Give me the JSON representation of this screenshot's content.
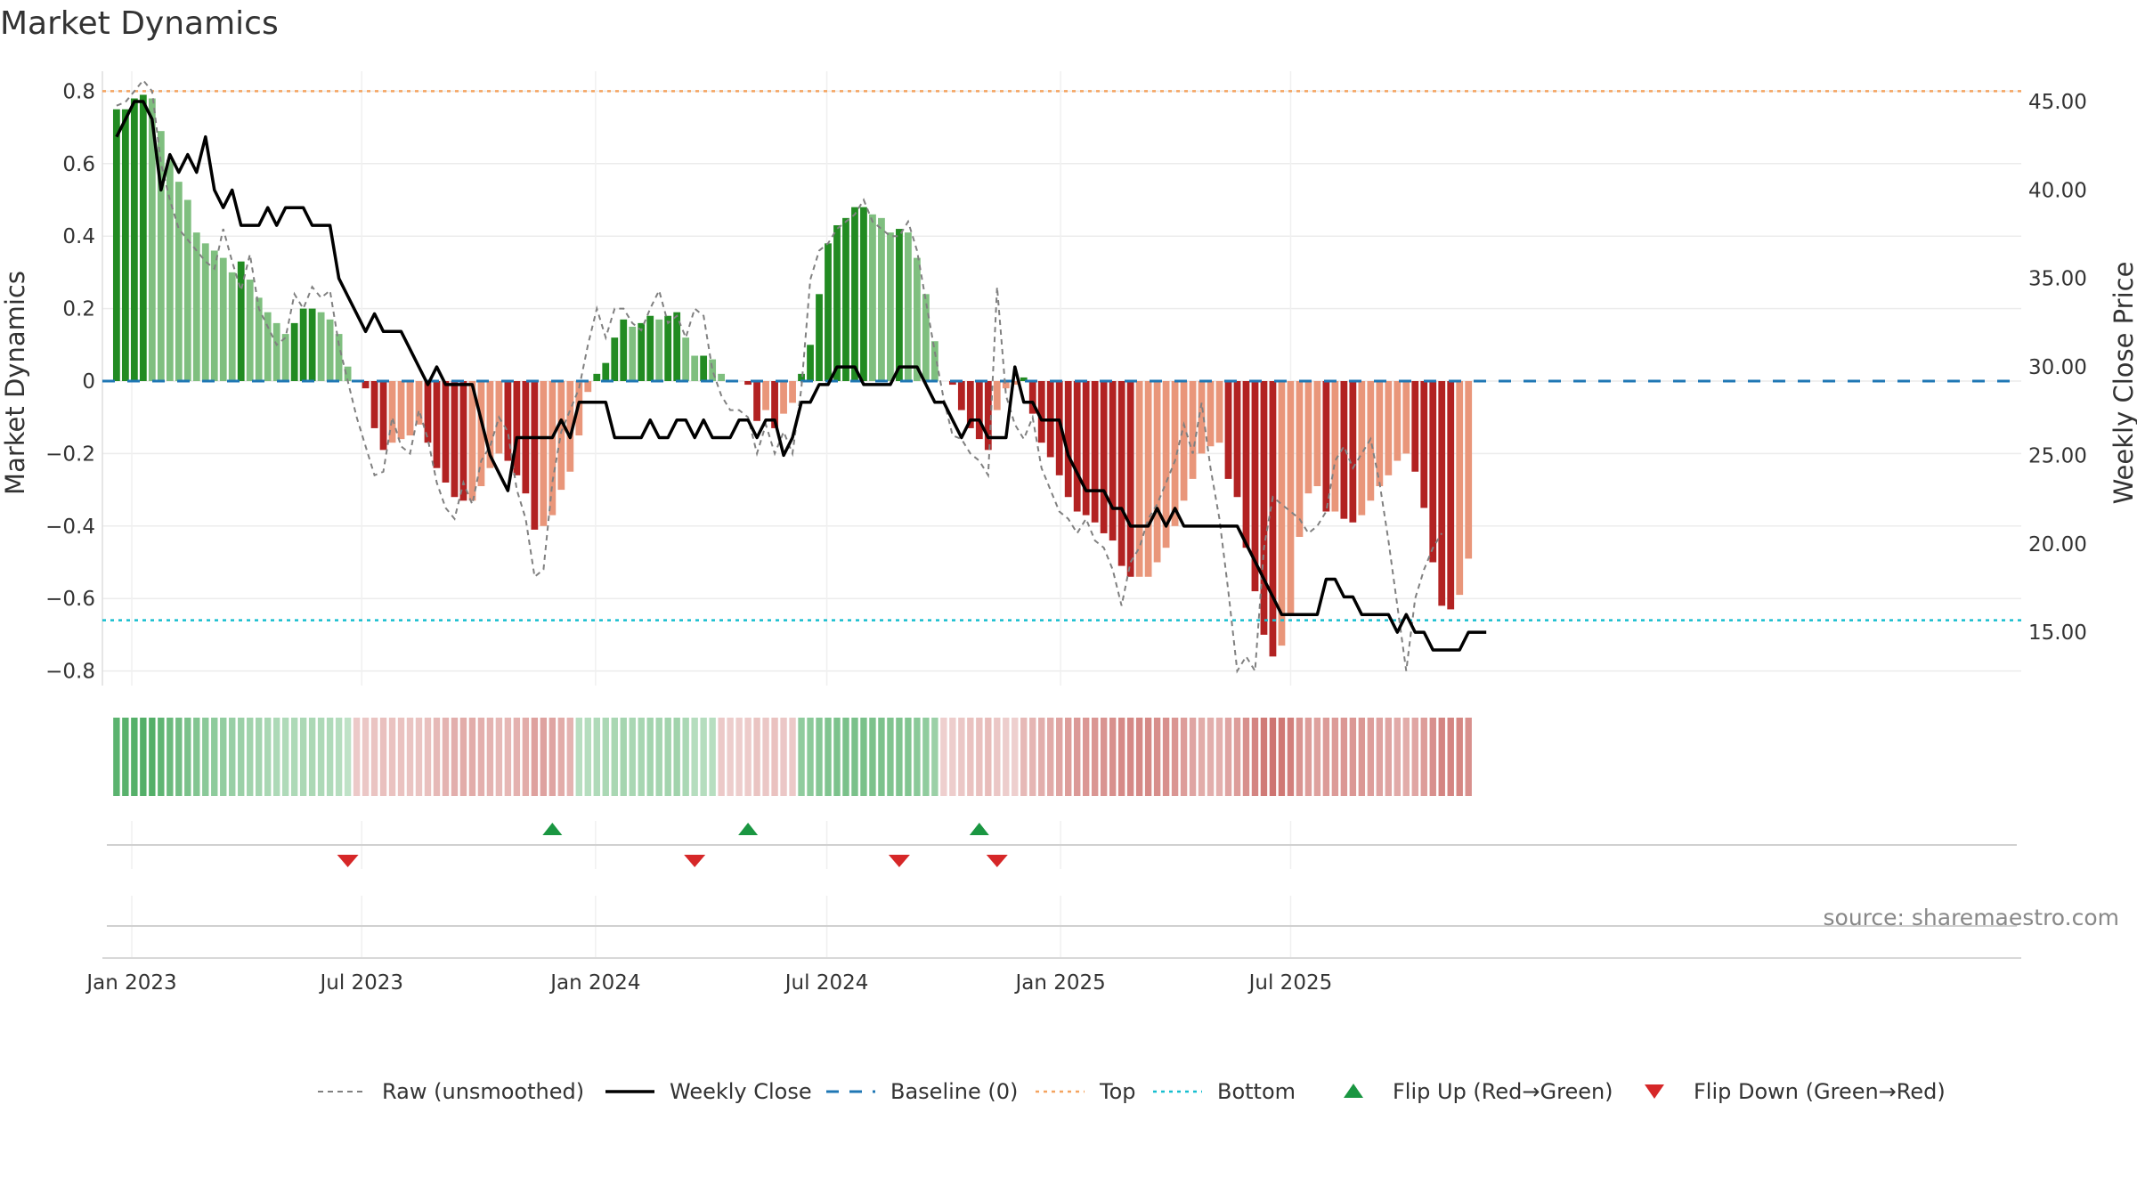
{
  "chart_data": {
    "type": "bar",
    "title": "Market Dynamics",
    "ylabel": "Market Dynamics",
    "y2label": "Weekly Close Price",
    "ylim": [
      -0.85,
      0.85
    ],
    "y2lim": [
      11.8,
      46.8
    ],
    "yticks": [
      -0.8,
      -0.6,
      -0.4,
      -0.2,
      0,
      0.2,
      0.4,
      0.6,
      0.8
    ],
    "yticklabels": [
      "−0.8",
      "−0.6",
      "−0.4",
      "−0.2",
      "0",
      "0.2",
      "0.4",
      "0.6",
      "0.8"
    ],
    "y2ticks": [
      15,
      20,
      25,
      30,
      35,
      40,
      45
    ],
    "y2ticklabels": [
      "15.00",
      "20.00",
      "25.00",
      "30.00",
      "35.00",
      "40.00",
      "45.00"
    ],
    "xticks": [
      "2023-01-01",
      "2023-07-01",
      "2024-01-01",
      "2024-07-01",
      "2025-01-01",
      "2025-07-01"
    ],
    "xticklabels": [
      "Jan 2023",
      "Jul 2023",
      "Jan 2024",
      "Jul 2024",
      "Jan 2025",
      "Jul 2025"
    ],
    "top_level": 0.8,
    "bottom_level": -0.66,
    "baseline": 0,
    "start_week": "2022-12-20",
    "market_dynamics": [
      0.75,
      0.75,
      0.78,
      0.79,
      0.78,
      0.69,
      0.61,
      0.55,
      0.5,
      0.41,
      0.38,
      0.36,
      0.34,
      0.3,
      0.33,
      0.28,
      0.23,
      0.19,
      0.16,
      0.13,
      0.16,
      0.2,
      0.2,
      0.19,
      0.17,
      0.13,
      0.04,
      0,
      -0.02,
      -0.13,
      -0.19,
      -0.17,
      -0.16,
      -0.15,
      -0.12,
      -0.17,
      -0.24,
      -0.28,
      -0.32,
      -0.33,
      -0.33,
      -0.29,
      -0.24,
      -0.2,
      -0.22,
      -0.26,
      -0.31,
      -0.41,
      -0.4,
      -0.37,
      -0.3,
      -0.25,
      -0.15,
      -0.03,
      0.02,
      0.05,
      0.12,
      0.17,
      0.15,
      0.16,
      0.18,
      0.17,
      0.18,
      0.19,
      0.12,
      0.07,
      0.07,
      0.06,
      0.02,
      0,
      0,
      -0.01,
      -0.11,
      -0.08,
      -0.13,
      -0.09,
      -0.06,
      0.02,
      0.1,
      0.24,
      0.38,
      0.43,
      0.45,
      0.48,
      0.48,
      0.46,
      0.45,
      0.41,
      0.42,
      0.41,
      0.34,
      0.24,
      0.11,
      0,
      -0.01,
      -0.08,
      -0.13,
      -0.16,
      -0.19,
      -0.08,
      -0.02,
      -0.01,
      0.01,
      -0.09,
      -0.17,
      -0.21,
      -0.26,
      -0.32,
      -0.36,
      -0.37,
      -0.39,
      -0.42,
      -0.44,
      -0.51,
      -0.54,
      -0.54,
      -0.54,
      -0.5,
      -0.46,
      -0.4,
      -0.33,
      -0.27,
      -0.2,
      -0.18,
      -0.17,
      -0.27,
      -0.32,
      -0.46,
      -0.58,
      -0.7,
      -0.76,
      -0.73,
      -0.64,
      -0.43,
      -0.31,
      -0.29,
      -0.36,
      -0.36,
      -0.38,
      -0.39,
      -0.37,
      -0.33,
      -0.29,
      -0.26,
      -0.22,
      -0.2,
      -0.25,
      -0.35,
      -0.5,
      -0.62,
      -0.63,
      -0.59,
      -0.49
    ],
    "raw_unsmoothed": [
      0.76,
      0.77,
      0.8,
      0.83,
      0.8,
      0.6,
      0.5,
      0.42,
      0.39,
      0.36,
      0.33,
      0.31,
      0.42,
      0.33,
      0.25,
      0.35,
      0.2,
      0.15,
      0.1,
      0.12,
      0.24,
      0.2,
      0.26,
      0.23,
      0.25,
      0.1,
      0,
      -0.1,
      -0.18,
      -0.26,
      -0.25,
      -0.1,
      -0.18,
      -0.2,
      -0.08,
      -0.16,
      -0.28,
      -0.35,
      -0.38,
      -0.28,
      -0.34,
      -0.22,
      -0.18,
      -0.1,
      -0.14,
      -0.3,
      -0.38,
      -0.54,
      -0.52,
      -0.28,
      -0.14,
      -0.08,
      -0.02,
      0.1,
      0.2,
      0.12,
      0.2,
      0.2,
      0.16,
      0.14,
      0.2,
      0.25,
      0.16,
      0.18,
      0.12,
      0.2,
      0.18,
      0.03,
      -0.04,
      -0.08,
      -0.08,
      -0.1,
      -0.2,
      -0.12,
      -0.2,
      -0.14,
      -0.2,
      -0.02,
      0.28,
      0.36,
      0.38,
      0.42,
      0.44,
      0.46,
      0.5,
      0.44,
      0.42,
      0.4,
      0.4,
      0.44,
      0.36,
      0.22,
      0.08,
      -0.05,
      -0.15,
      -0.16,
      -0.2,
      -0.22,
      -0.26,
      0.26,
      -0.04,
      -0.12,
      -0.16,
      -0.1,
      -0.24,
      -0.3,
      -0.36,
      -0.38,
      -0.42,
      -0.38,
      -0.44,
      -0.46,
      -0.52,
      -0.62,
      -0.5,
      -0.46,
      -0.38,
      -0.34,
      -0.28,
      -0.22,
      -0.12,
      -0.2,
      -0.06,
      -0.24,
      -0.38,
      -0.58,
      -0.8,
      -0.76,
      -0.8,
      -0.46,
      -0.32,
      -0.34,
      -0.36,
      -0.38,
      -0.42,
      -0.4,
      -0.36,
      -0.22,
      -0.18,
      -0.24,
      -0.2,
      -0.16,
      -0.28,
      -0.44,
      -0.62,
      -0.8,
      -0.6,
      -0.52,
      -0.46,
      -0.42
    ],
    "weekly_close": [
      43,
      44,
      45,
      45,
      44,
      40,
      42,
      41,
      42,
      41,
      43,
      40,
      39,
      40,
      38,
      38,
      38,
      39,
      38,
      39,
      39,
      39,
      38,
      38,
      38,
      35,
      34,
      33,
      32,
      33,
      32,
      32,
      32,
      31,
      30,
      29,
      30,
      29,
      29,
      29,
      29,
      27,
      25,
      24,
      23,
      26,
      26,
      26,
      26,
      26,
      27,
      26,
      28,
      28,
      28,
      28,
      26,
      26,
      26,
      26,
      27,
      26,
      26,
      27,
      27,
      26,
      27,
      26,
      26,
      26,
      27,
      27,
      26,
      27,
      27,
      25,
      26,
      28,
      28,
      29,
      29,
      30,
      30,
      30,
      29,
      29,
      29,
      29,
      30,
      30,
      30,
      29,
      28,
      28,
      27,
      26,
      27,
      27,
      26,
      26,
      26,
      30,
      28,
      28,
      27,
      27,
      27,
      25,
      24,
      23,
      23,
      23,
      22,
      22,
      21,
      21,
      21,
      22,
      21,
      22,
      21,
      21,
      21,
      21,
      21,
      21,
      21,
      20,
      19,
      18,
      17,
      16,
      16,
      16,
      16,
      16,
      18,
      18,
      17,
      17,
      16,
      16,
      16,
      16,
      15,
      16,
      15,
      15,
      14,
      14,
      14,
      14,
      15,
      15,
      15
    ],
    "bottom_strip": [
      0.8,
      0.82,
      0.84,
      0.85,
      0.85,
      0.78,
      0.7,
      0.65,
      0.6,
      0.55,
      0.5,
      0.47,
      0.44,
      0.4,
      0.38,
      0.35,
      0.33,
      0.3,
      0.27,
      0.25,
      0.27,
      0.28,
      0.28,
      0.27,
      0.25,
      0.22,
      0.15,
      -0.18,
      -0.2,
      -0.22,
      -0.25,
      -0.24,
      -0.24,
      -0.23,
      -0.22,
      -0.26,
      -0.3,
      -0.34,
      -0.38,
      -0.4,
      -0.4,
      -0.37,
      -0.34,
      -0.3,
      -0.32,
      -0.36,
      -0.4,
      -0.48,
      -0.47,
      -0.45,
      -0.4,
      -0.35,
      0.2,
      0.22,
      0.25,
      0.28,
      0.3,
      0.32,
      0.3,
      0.31,
      0.33,
      0.32,
      0.33,
      0.34,
      0.28,
      0.22,
      0.22,
      0.2,
      -0.18,
      -0.16,
      -0.16,
      -0.17,
      -0.22,
      -0.2,
      -0.24,
      -0.2,
      -0.18,
      0.45,
      0.48,
      0.52,
      0.56,
      0.58,
      0.6,
      0.6,
      0.6,
      0.58,
      0.58,
      0.56,
      0.56,
      0.55,
      0.5,
      0.45,
      0.38,
      -0.15,
      -0.16,
      -0.2,
      -0.24,
      -0.26,
      -0.28,
      -0.2,
      -0.16,
      -0.15,
      -0.3,
      -0.33,
      -0.38,
      -0.42,
      -0.46,
      -0.5,
      -0.53,
      -0.54,
      -0.56,
      -0.58,
      -0.6,
      -0.64,
      -0.65,
      -0.65,
      -0.65,
      -0.62,
      -0.6,
      -0.56,
      -0.5,
      -0.45,
      -0.4,
      -0.38,
      -0.37,
      -0.45,
      -0.5,
      -0.6,
      -0.68,
      -0.76,
      -0.8,
      -0.78,
      -0.72,
      -0.58,
      -0.5,
      -0.48,
      -0.52,
      -0.52,
      -0.54,
      -0.55,
      -0.54,
      -0.5,
      -0.47,
      -0.45,
      -0.42,
      -0.4,
      -0.44,
      -0.5,
      -0.6,
      -0.68,
      -0.68,
      -0.66,
      -0.6
    ],
    "flips_up": [
      "2023-11-28",
      "2024-04-30",
      "2024-10-29"
    ],
    "flips_down": [
      "2023-06-20",
      "2024-03-19",
      "2024-08-27",
      "2024-11-12"
    ],
    "legend": [
      {
        "label": "Raw (unsmoothed)",
        "style": "dashed-gray"
      },
      {
        "label": "Weekly Close",
        "style": "solid-black"
      },
      {
        "label": "Baseline (0)",
        "style": "dashed-blue"
      },
      {
        "label": "Top",
        "style": "dotted-orange"
      },
      {
        "label": "Bottom",
        "style": "dotted-cyan"
      },
      {
        "label": "Flip Up (Red→Green)",
        "style": "triangle-up-green"
      },
      {
        "label": "Flip Down (Green→Red)",
        "style": "triangle-down-red"
      }
    ],
    "legend_position": "bottom-center",
    "grid": true,
    "colors": {
      "strong_green": "#228b22",
      "light_green": "#7fbf7f",
      "strong_red": "#b22222",
      "light_red": "#e9967a",
      "price_line": "#000000",
      "raw_line": "#808080",
      "baseline": "#1f77b4",
      "top": "#f4a460",
      "bottom": "#17becf",
      "flip_up": "#1a9641",
      "flip_down": "#d62728"
    }
  },
  "source": "source: sharemaestro.com"
}
